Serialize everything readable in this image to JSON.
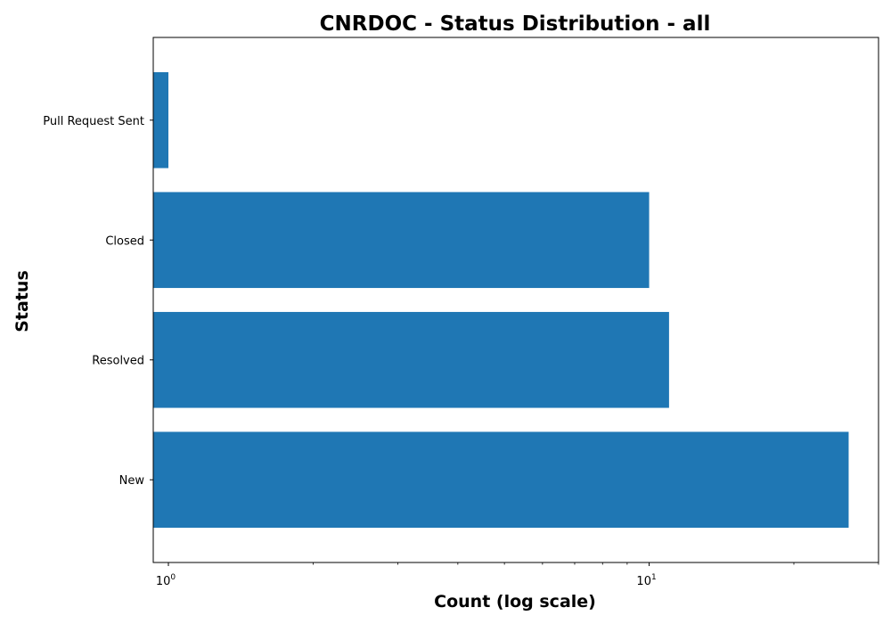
{
  "chart_data": {
    "type": "bar",
    "orientation": "horizontal",
    "title": "CNRDOC - Status Distribution - all",
    "xlabel": "Count (log scale)",
    "ylabel": "Status",
    "xscale": "log",
    "xlim": [
      0.93,
      30
    ],
    "categories": [
      "New",
      "Resolved",
      "Closed",
      "Pull Request Sent"
    ],
    "values": [
      26,
      11,
      10,
      1
    ],
    "bar_color": "#1f77b4",
    "grid": false,
    "x_major_ticks": [
      {
        "base": "10",
        "exp": "0",
        "value": 1
      },
      {
        "base": "10",
        "exp": "1",
        "value": 10
      }
    ]
  }
}
